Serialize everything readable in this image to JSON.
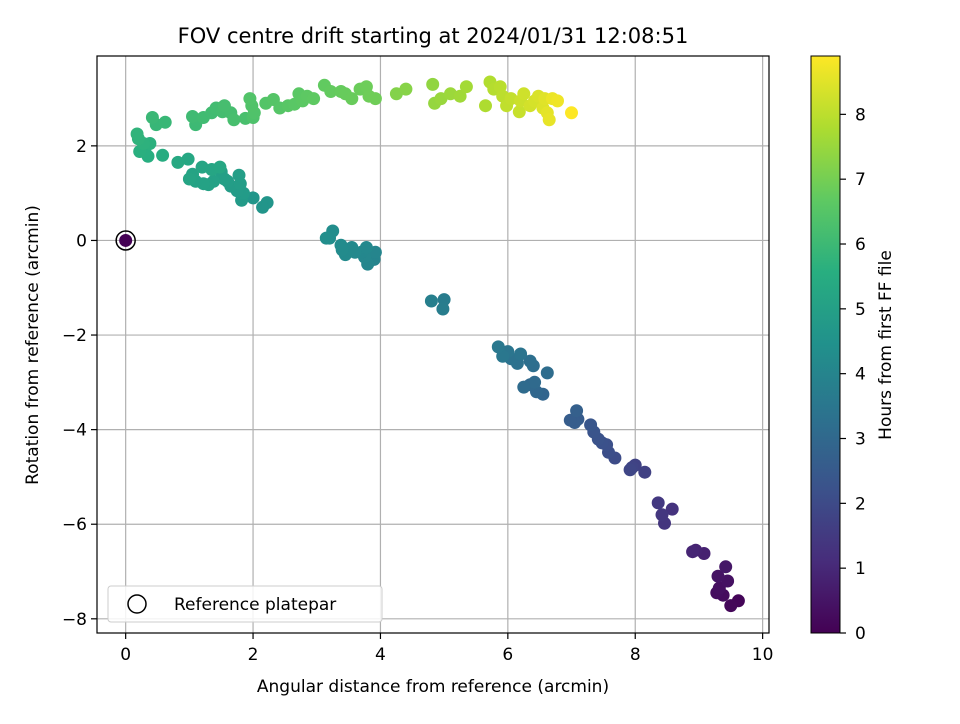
{
  "chart_data": {
    "type": "scatter",
    "title": "FOV centre drift starting at 2024/01/31 12:08:51",
    "xlabel": "Angular distance from reference (arcmin)",
    "ylabel": "Rotation from reference (arcmin)",
    "xlim": [
      -0.45,
      10.1
    ],
    "ylim": [
      -8.3,
      3.9
    ],
    "xticks": [
      0,
      2,
      4,
      6,
      8,
      10
    ],
    "xtick_labels": [
      "0",
      "2",
      "4",
      "6",
      "8",
      "10"
    ],
    "yticks": [
      -8,
      -6,
      -4,
      -2,
      0,
      2
    ],
    "ytick_labels": [
      "−8",
      "−6",
      "−4",
      "−2",
      "0",
      "2"
    ],
    "grid": true,
    "colormap": "viridis",
    "colorbar": {
      "label": "Hours from first FF file",
      "range": [
        0,
        8.9
      ],
      "ticks": [
        0,
        1,
        2,
        3,
        4,
        5,
        6,
        7,
        8
      ],
      "tick_labels": [
        "0",
        "1",
        "2",
        "3",
        "4",
        "5",
        "6",
        "7",
        "8"
      ]
    },
    "legend": {
      "placement": "lower-left",
      "entries": [
        "Reference platepar"
      ]
    },
    "reference_point": {
      "x": 0,
      "y": 0,
      "hours": 0,
      "label": "Reference platepar"
    },
    "series": [
      {
        "points": [
          [
            9.62,
            -7.62,
            0.1
          ],
          [
            9.5,
            -7.72,
            0.15
          ],
          [
            9.38,
            -7.5,
            0.25
          ],
          [
            9.28,
            -7.45,
            0.3
          ],
          [
            9.32,
            -7.35,
            0.35
          ],
          [
            9.45,
            -7.2,
            0.4
          ],
          [
            9.3,
            -7.1,
            0.45
          ],
          [
            9.42,
            -6.9,
            0.55
          ],
          [
            9.08,
            -6.62,
            0.8
          ],
          [
            8.95,
            -6.55,
            0.85
          ],
          [
            8.9,
            -6.58,
            0.9
          ],
          [
            8.58,
            -5.68,
            1.3
          ],
          [
            8.46,
            -5.98,
            1.35
          ],
          [
            8.42,
            -5.8,
            1.4
          ],
          [
            8.36,
            -5.55,
            1.45
          ],
          [
            8.15,
            -4.9,
            1.7
          ],
          [
            8.0,
            -4.75,
            1.75
          ],
          [
            7.95,
            -4.8,
            1.8
          ],
          [
            7.92,
            -4.85,
            1.85
          ],
          [
            7.68,
            -4.6,
            2.05
          ],
          [
            7.58,
            -4.48,
            2.1
          ],
          [
            7.55,
            -4.32,
            2.15
          ],
          [
            7.48,
            -4.28,
            2.2
          ],
          [
            7.42,
            -4.2,
            2.25
          ],
          [
            7.35,
            -4.05,
            2.3
          ],
          [
            7.3,
            -3.9,
            2.35
          ],
          [
            7.1,
            -3.78,
            2.55
          ],
          [
            7.05,
            -3.85,
            2.6
          ],
          [
            6.98,
            -3.8,
            2.62
          ],
          [
            7.08,
            -3.6,
            2.7
          ],
          [
            6.55,
            -3.25,
            2.9
          ],
          [
            6.45,
            -3.2,
            2.95
          ],
          [
            6.35,
            -3.05,
            3.0
          ],
          [
            6.42,
            -3.0,
            3.05
          ],
          [
            6.25,
            -3.1,
            3.1
          ],
          [
            6.62,
            -2.8,
            3.15
          ],
          [
            6.4,
            -2.65,
            3.2
          ],
          [
            6.35,
            -2.55,
            3.25
          ],
          [
            6.15,
            -2.6,
            3.3
          ],
          [
            6.05,
            -2.5,
            3.35
          ],
          [
            6.2,
            -2.4,
            3.4
          ],
          [
            6.0,
            -2.35,
            3.45
          ],
          [
            5.92,
            -2.45,
            3.5
          ],
          [
            5.85,
            -2.25,
            3.55
          ],
          [
            5.0,
            -1.25,
            3.7
          ],
          [
            4.98,
            -1.45,
            3.75
          ],
          [
            4.8,
            -1.28,
            3.8
          ],
          [
            3.9,
            -0.4,
            4.0
          ],
          [
            3.92,
            -0.25,
            4.02
          ],
          [
            3.8,
            -0.5,
            4.05
          ],
          [
            3.75,
            -0.35,
            4.08
          ],
          [
            3.7,
            -0.25,
            4.1
          ],
          [
            3.78,
            -0.15,
            4.12
          ],
          [
            3.6,
            -0.25,
            4.15
          ],
          [
            3.55,
            -0.15,
            4.18
          ],
          [
            3.45,
            -0.3,
            4.2
          ],
          [
            3.4,
            -0.2,
            4.22
          ],
          [
            3.38,
            -0.1,
            4.25
          ],
          [
            3.25,
            0.2,
            4.3
          ],
          [
            3.2,
            0.05,
            4.32
          ],
          [
            3.15,
            0.05,
            4.35
          ],
          [
            2.22,
            0.8,
            4.6
          ],
          [
            2.15,
            0.7,
            4.62
          ],
          [
            2.0,
            0.9,
            4.65
          ],
          [
            1.82,
            0.85,
            4.8
          ],
          [
            1.85,
            1.0,
            4.82
          ],
          [
            1.75,
            1.05,
            4.85
          ],
          [
            1.65,
            1.15,
            4.88
          ],
          [
            1.8,
            1.2,
            4.9
          ],
          [
            1.6,
            1.25,
            4.92
          ],
          [
            1.78,
            1.38,
            4.95
          ],
          [
            1.55,
            1.3,
            4.98
          ],
          [
            1.5,
            1.45,
            5.0
          ],
          [
            1.38,
            1.25,
            5.05
          ],
          [
            1.3,
            1.18,
            5.08
          ],
          [
            1.22,
            1.2,
            5.1
          ],
          [
            1.1,
            1.25,
            5.12
          ],
          [
            1.05,
            1.4,
            5.15
          ],
          [
            1.0,
            1.3,
            5.18
          ],
          [
            1.2,
            1.55,
            5.2
          ],
          [
            1.35,
            1.5,
            5.22
          ],
          [
            1.48,
            1.55,
            5.25
          ],
          [
            0.98,
            1.72,
            5.3
          ],
          [
            0.82,
            1.65,
            5.35
          ],
          [
            0.58,
            1.8,
            5.5
          ],
          [
            0.35,
            1.78,
            5.55
          ],
          [
            0.3,
            1.9,
            5.58
          ],
          [
            0.22,
            1.88,
            5.6
          ],
          [
            0.38,
            2.05,
            5.65
          ],
          [
            0.28,
            2.05,
            5.68
          ],
          [
            0.2,
            2.15,
            5.72
          ],
          [
            0.18,
            2.25,
            5.75
          ],
          [
            0.48,
            2.45,
            5.9
          ],
          [
            0.62,
            2.5,
            5.92
          ],
          [
            0.42,
            2.6,
            5.95
          ],
          [
            1.1,
            2.45,
            6.0
          ],
          [
            1.12,
            2.55,
            6.02
          ],
          [
            1.05,
            2.62,
            6.05
          ],
          [
            1.22,
            2.6,
            6.08
          ],
          [
            1.35,
            2.7,
            6.1
          ],
          [
            1.42,
            2.8,
            6.12
          ],
          [
            1.52,
            2.72,
            6.15
          ],
          [
            1.65,
            2.7,
            6.18
          ],
          [
            1.55,
            2.85,
            6.2
          ],
          [
            1.7,
            2.55,
            6.22
          ],
          [
            1.88,
            2.58,
            6.25
          ],
          [
            2.0,
            2.6,
            6.35
          ],
          [
            2.02,
            2.7,
            6.38
          ],
          [
            1.98,
            2.85,
            6.4
          ],
          [
            1.95,
            3.0,
            6.42
          ],
          [
            2.2,
            2.9,
            6.45
          ],
          [
            2.32,
            2.98,
            6.48
          ],
          [
            2.42,
            2.8,
            6.5
          ],
          [
            2.55,
            2.85,
            6.55
          ],
          [
            2.65,
            2.88,
            6.58
          ],
          [
            2.72,
            3.1,
            6.6
          ],
          [
            2.78,
            2.95,
            6.62
          ],
          [
            2.85,
            3.05,
            6.65
          ],
          [
            2.95,
            3.0,
            6.68
          ],
          [
            3.12,
            3.28,
            6.72
          ],
          [
            3.22,
            3.15,
            6.75
          ],
          [
            3.38,
            3.15,
            6.78
          ],
          [
            3.45,
            3.1,
            6.8
          ],
          [
            3.55,
            3.0,
            6.82
          ],
          [
            3.68,
            3.2,
            6.85
          ],
          [
            3.78,
            3.25,
            6.88
          ],
          [
            3.82,
            3.05,
            6.9
          ],
          [
            3.92,
            3.0,
            6.92
          ],
          [
            4.25,
            3.1,
            7.2
          ],
          [
            4.4,
            3.2,
            7.25
          ],
          [
            4.82,
            3.3,
            7.4
          ],
          [
            4.85,
            2.9,
            7.45
          ],
          [
            4.95,
            3.0,
            7.5
          ],
          [
            5.1,
            3.1,
            7.55
          ],
          [
            5.25,
            3.05,
            7.6
          ],
          [
            5.35,
            3.25,
            7.65
          ],
          [
            5.65,
            2.85,
            7.8
          ],
          [
            5.72,
            3.35,
            7.85
          ],
          [
            5.78,
            3.2,
            7.9
          ],
          [
            5.88,
            3.25,
            7.95
          ],
          [
            5.92,
            3.05,
            8.0
          ],
          [
            5.98,
            2.85,
            8.05
          ],
          [
            6.05,
            3.0,
            8.1
          ],
          [
            6.18,
            2.72,
            8.15
          ],
          [
            6.2,
            2.95,
            8.2
          ],
          [
            6.25,
            3.1,
            8.25
          ],
          [
            6.35,
            2.85,
            8.3
          ],
          [
            6.42,
            2.95,
            8.35
          ],
          [
            6.48,
            3.05,
            8.4
          ],
          [
            6.55,
            2.8,
            8.45
          ],
          [
            6.58,
            3.0,
            8.5
          ],
          [
            6.62,
            2.7,
            8.55
          ],
          [
            6.65,
            2.55,
            8.6
          ],
          [
            6.7,
            3.0,
            8.65
          ],
          [
            6.78,
            2.95,
            8.7
          ],
          [
            7.0,
            2.7,
            8.9
          ]
        ]
      }
    ]
  }
}
